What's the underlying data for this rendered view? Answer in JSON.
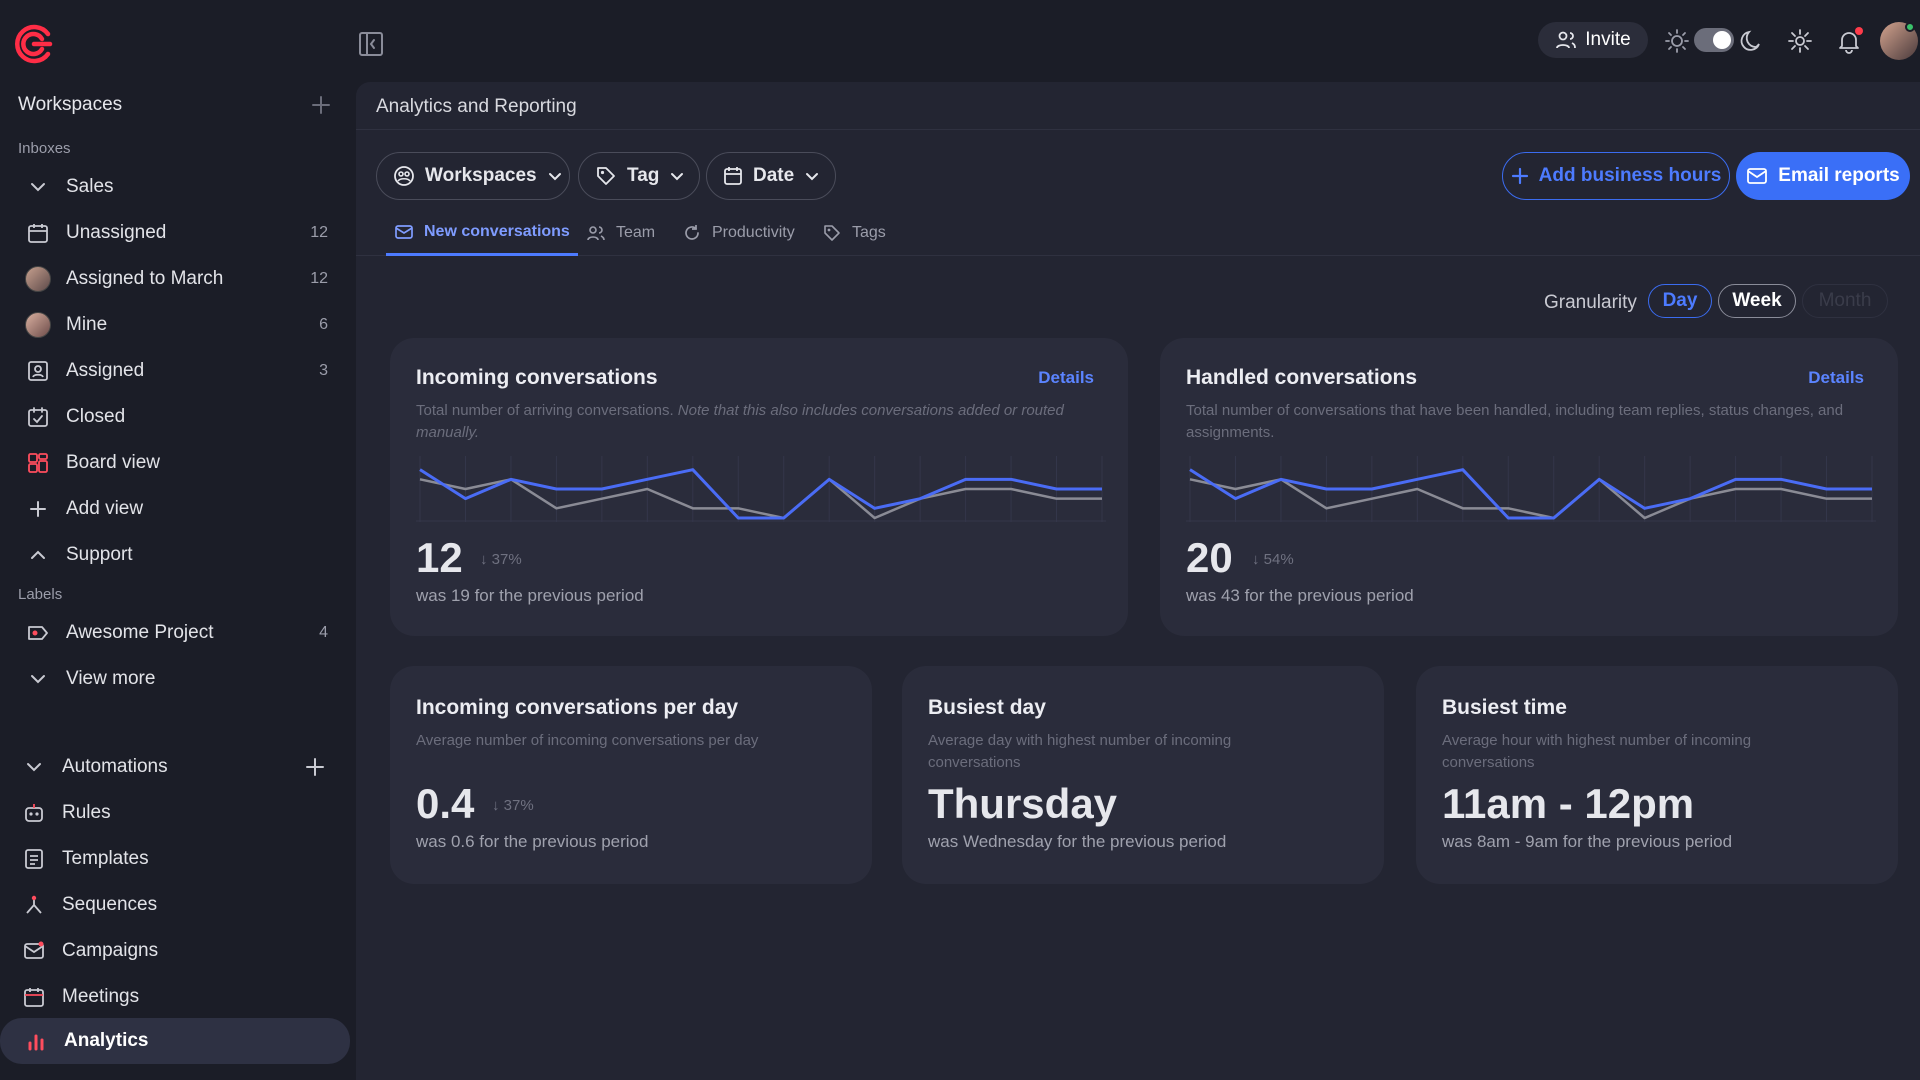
{
  "sidebar": {
    "workspaces_title": "Workspaces",
    "inboxes_section": "Inboxes",
    "sales": "Sales",
    "items": [
      {
        "label": "Unassigned",
        "count": "12"
      },
      {
        "label": "Assigned to March",
        "count": "12"
      },
      {
        "label": "Mine",
        "count": "6"
      },
      {
        "label": "Assigned",
        "count": "3"
      },
      {
        "label": "Closed",
        "count": ""
      },
      {
        "label": "Board view",
        "count": ""
      },
      {
        "label": "Add view",
        "count": ""
      }
    ],
    "support": "Support",
    "labels_section": "Labels",
    "labels": [
      {
        "label": "Awesome Project",
        "count": "4"
      }
    ],
    "view_more": "View more",
    "automations": "Automations",
    "automation_items": [
      "Rules",
      "Templates",
      "Sequences",
      "Campaigns",
      "Meetings"
    ],
    "analytics": "Analytics"
  },
  "topbar": {
    "invite_label": "Invite"
  },
  "main": {
    "title": "Analytics and Reporting",
    "filters": [
      "Workspaces",
      "Tag",
      "Date"
    ],
    "add_business_hours": "Add business hours",
    "email_reports": "Email reports",
    "tabs": [
      "New conversations",
      "Team",
      "Productivity",
      "Tags"
    ],
    "granularity_label": "Granularity",
    "granularity_options": [
      "Day",
      "Week",
      "Month"
    ],
    "granularity_selected": "Day"
  },
  "cards": {
    "incoming": {
      "title": "Incoming conversations",
      "details": "Details",
      "desc_normal": "Total number of arriving conversations. ",
      "desc_italic": "Note that this also includes conversations added or routed manually.",
      "value": "12",
      "delta": "37%",
      "previous": "was 19 for the previous period"
    },
    "handled": {
      "title": "Handled conversations",
      "details": "Details",
      "desc": "Total number of conversations that have been handled, including team replies, status changes, and assignments.",
      "value": "20",
      "delta": "54%",
      "previous": "was 43 for the previous period"
    },
    "per_day": {
      "title": "Incoming conversations per day",
      "desc": "Average number of incoming conversations per day",
      "value": "0.4",
      "delta": "37%",
      "previous": "was 0.6 for the previous period"
    },
    "busiest_day": {
      "title": "Busiest day",
      "desc": "Average day with highest number of incoming conversations",
      "value": "Thursday",
      "previous": "was Wednesday for the previous period"
    },
    "busiest_time": {
      "title": "Busiest time",
      "desc": "Average hour with highest number of incoming conversations",
      "value": "11am - 12pm",
      "previous": "was 8am - 9am for the previous period"
    }
  },
  "colors": {
    "accent": "#3a6ff7",
    "current_line": "#4a6cf5",
    "previous_line": "#8a8b95",
    "background": "#1b1d27",
    "panel": "#232532",
    "card": "#2a2c3b"
  },
  "chart_data": [
    {
      "type": "line",
      "series": [
        {
          "values": [
            5,
            2,
            4,
            3,
            3,
            4,
            5,
            0,
            0,
            4,
            1,
            2,
            4,
            4,
            3,
            3
          ]
        },
        {
          "values": [
            4,
            3,
            4,
            1,
            2,
            3,
            1,
            1,
            0,
            4,
            0,
            2,
            3,
            3,
            2,
            2
          ]
        }
      ],
      "ylim": [
        0,
        6
      ]
    },
    {
      "type": "line",
      "series": [
        {
          "values": [
            5,
            2,
            4,
            3,
            3,
            4,
            5,
            0,
            0,
            4,
            1,
            2,
            4,
            4,
            3,
            3
          ]
        },
        {
          "values": [
            4,
            3,
            4,
            1,
            2,
            3,
            1,
            1,
            0,
            4,
            0,
            2,
            3,
            3,
            2,
            2
          ]
        }
      ],
      "ylim": [
        0,
        6
      ]
    }
  ]
}
